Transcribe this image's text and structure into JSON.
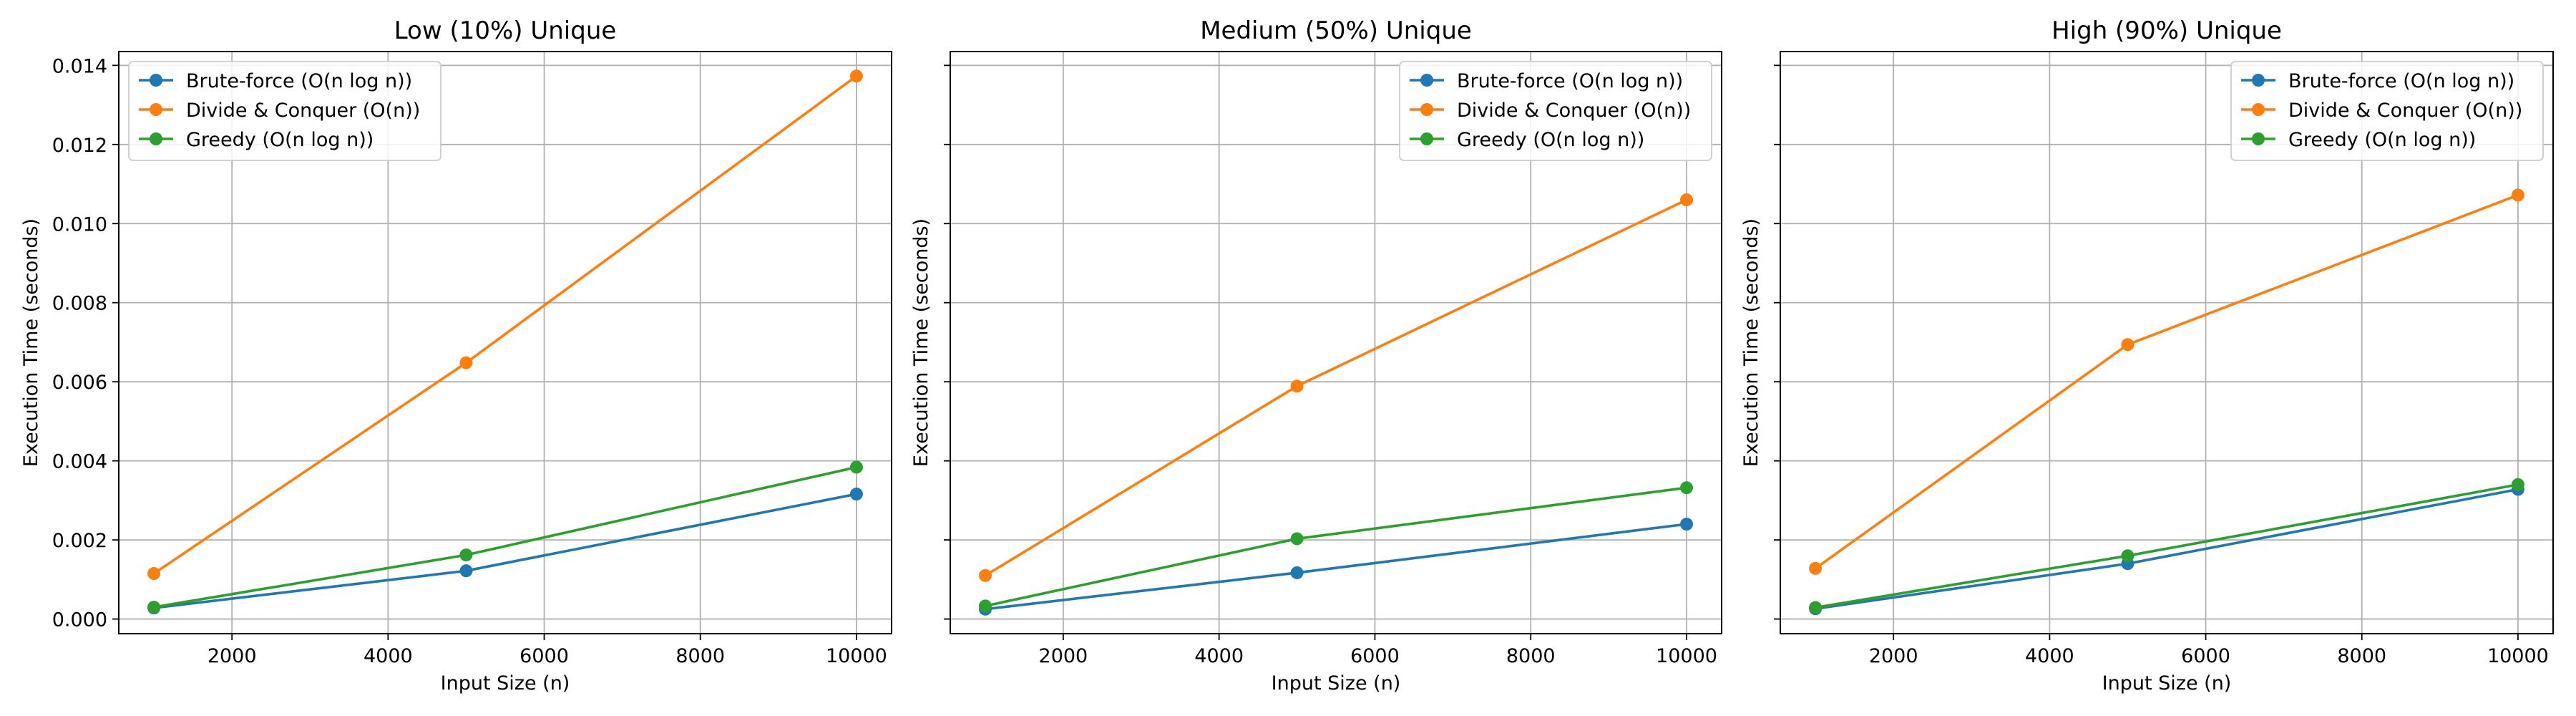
{
  "chart_data": [
    {
      "type": "line",
      "title": "Low (10%) Unique",
      "xlabel": "Input Size (n)",
      "ylabel": "Execution Time (seconds)",
      "x": [
        1000,
        5000,
        10000
      ],
      "xlim": [
        550,
        10450
      ],
      "ylim": [
        -0.00037,
        0.01435
      ],
      "xticks": [
        2000,
        4000,
        6000,
        8000,
        10000
      ],
      "yticks": [
        0.0,
        0.002,
        0.004,
        0.006,
        0.008,
        0.01,
        0.012,
        0.014
      ],
      "xtick_labels": [
        "2000",
        "4000",
        "6000",
        "8000",
        "10000"
      ],
      "ytick_labels": [
        "0.000",
        "0.002",
        "0.004",
        "0.006",
        "0.008",
        "0.010",
        "0.012",
        "0.014"
      ],
      "show_y_tick_labels": true,
      "grid": true,
      "legend_position": "top-left",
      "series": [
        {
          "name": "Brute-force (O(n log n))",
          "color": "#1f77b4",
          "values": [
            0.00028,
            0.00122,
            0.00316
          ]
        },
        {
          "name": "Divide & Conquer (O(n))",
          "color": "#ff7f0e",
          "values": [
            0.00115,
            0.00648,
            0.01373
          ]
        },
        {
          "name": "Greedy (O(n log n))",
          "color": "#2ca02c",
          "values": [
            0.0003,
            0.00162,
            0.00384
          ]
        }
      ]
    },
    {
      "type": "line",
      "title": "Medium (50%) Unique",
      "xlabel": "Input Size (n)",
      "ylabel": "Execution Time (seconds)",
      "x": [
        1000,
        5000,
        10000
      ],
      "xlim": [
        550,
        10450
      ],
      "ylim": [
        -0.00037,
        0.01435
      ],
      "xticks": [
        2000,
        4000,
        6000,
        8000,
        10000
      ],
      "yticks": [
        0.0,
        0.002,
        0.004,
        0.006,
        0.008,
        0.01,
        0.012,
        0.014
      ],
      "xtick_labels": [
        "2000",
        "4000",
        "6000",
        "8000",
        "10000"
      ],
      "ytick_labels": [
        "0.000",
        "0.002",
        "0.004",
        "0.006",
        "0.008",
        "0.010",
        "0.012",
        "0.014"
      ],
      "show_y_tick_labels": false,
      "grid": true,
      "legend_position": "top-right",
      "series": [
        {
          "name": "Brute-force (O(n log n))",
          "color": "#1f77b4",
          "values": [
            0.00025,
            0.00117,
            0.0024
          ]
        },
        {
          "name": "Divide & Conquer (O(n))",
          "color": "#ff7f0e",
          "values": [
            0.0011,
            0.00589,
            0.0106
          ]
        },
        {
          "name": "Greedy (O(n log n))",
          "color": "#2ca02c",
          "values": [
            0.00033,
            0.00203,
            0.00332
          ]
        }
      ]
    },
    {
      "type": "line",
      "title": "High (90%) Unique",
      "xlabel": "Input Size (n)",
      "ylabel": "Execution Time (seconds)",
      "x": [
        1000,
        5000,
        10000
      ],
      "xlim": [
        550,
        10450
      ],
      "ylim": [
        -0.00037,
        0.01435
      ],
      "xticks": [
        2000,
        4000,
        6000,
        8000,
        10000
      ],
      "yticks": [
        0.0,
        0.002,
        0.004,
        0.006,
        0.008,
        0.01,
        0.012,
        0.014
      ],
      "xtick_labels": [
        "2000",
        "4000",
        "6000",
        "8000",
        "10000"
      ],
      "ytick_labels": [
        "0.000",
        "0.002",
        "0.004",
        "0.006",
        "0.008",
        "0.010",
        "0.012",
        "0.014"
      ],
      "show_y_tick_labels": false,
      "grid": true,
      "legend_position": "top-right",
      "series": [
        {
          "name": "Brute-force (O(n log n))",
          "color": "#1f77b4",
          "values": [
            0.00026,
            0.0014,
            0.00328
          ]
        },
        {
          "name": "Divide & Conquer (O(n))",
          "color": "#ff7f0e",
          "values": [
            0.00128,
            0.00694,
            0.01072
          ]
        },
        {
          "name": "Greedy (O(n log n))",
          "color": "#2ca02c",
          "values": [
            0.00029,
            0.0016,
            0.0034
          ]
        }
      ]
    }
  ]
}
